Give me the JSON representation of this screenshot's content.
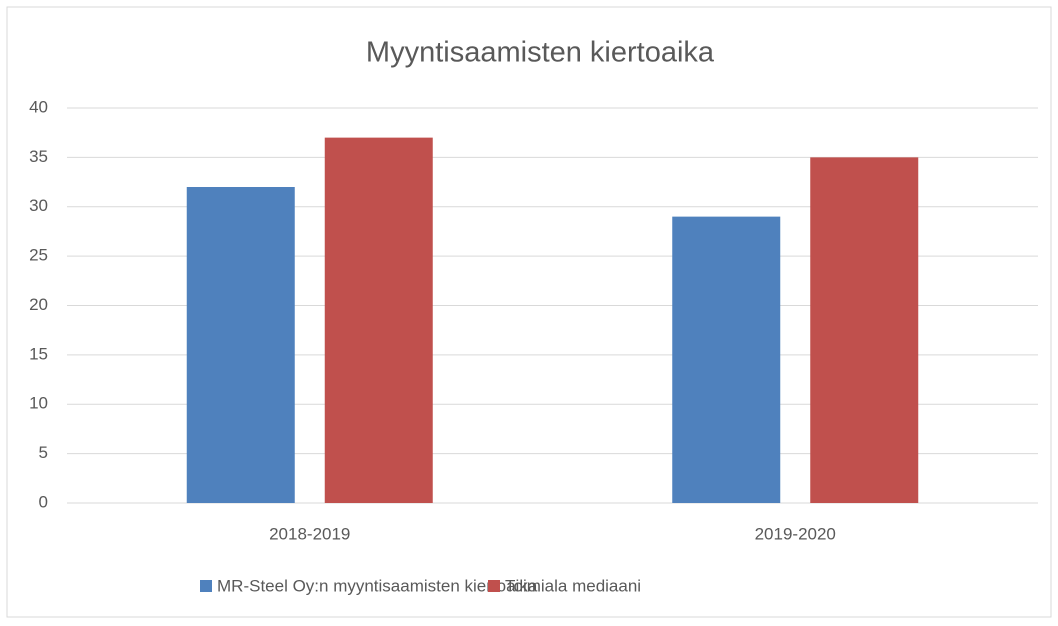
{
  "chart_data": {
    "type": "bar",
    "title": "Myyntisaamisten kiertoaika",
    "categories": [
      "2018-2019",
      "2019-2020"
    ],
    "series": [
      {
        "name": "MR-Steel Oy:n myyntisaamisten kiertoaika",
        "color": "#4f81bd",
        "values": [
          32,
          29
        ]
      },
      {
        "name": "Toimiala mediaani",
        "color": "#c0504d",
        "values": [
          37,
          35
        ]
      }
    ],
    "ylim": [
      0,
      40
    ],
    "yticks": [
      0,
      5,
      10,
      15,
      20,
      25,
      30,
      35,
      40
    ],
    "grid": true,
    "legend": "bottom"
  }
}
